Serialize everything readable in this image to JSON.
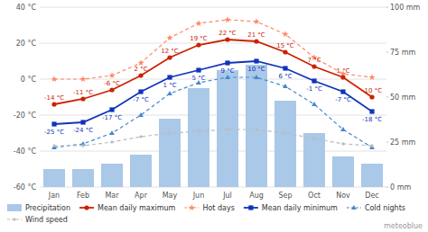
{
  "chart_data": {
    "type": "line",
    "categories": [
      "Jan",
      "Feb",
      "Mar",
      "Apr",
      "May",
      "Jun",
      "Jul",
      "Aug",
      "Sep",
      "Oct",
      "Nov",
      "Dec"
    ],
    "series": [
      {
        "name": "Precipitation",
        "type": "bar",
        "axis": "y2",
        "color": "#aac8e8",
        "values": [
          10,
          10,
          13,
          18,
          38,
          55,
          65,
          68,
          48,
          30,
          17,
          13
        ]
      },
      {
        "name": "Mean daily maximum",
        "type": "line",
        "color": "#cc2200",
        "marker": "circle",
        "line_style": "solid",
        "values": [
          -14,
          -11,
          -6,
          2,
          12,
          19,
          22,
          21,
          15,
          7,
          1,
          -10
        ],
        "data_labels": true,
        "value_labels": [
          "-14 °C",
          "-11 °C",
          "-6 °C",
          "2 °C",
          "12 °C",
          "19 °C",
          "22 °C",
          "21 °C",
          "15 °C",
          "7 °C",
          "1 °C",
          "-10 °C"
        ]
      },
      {
        "name": "Hot days",
        "type": "line",
        "color": "#ff8866",
        "marker": "star",
        "line_style": "dashed",
        "values": [
          0,
          0,
          2,
          9,
          23,
          31,
          33,
          32,
          25,
          12,
          3,
          1
        ]
      },
      {
        "name": "Mean daily minimum",
        "type": "line",
        "color": "#1133bb",
        "marker": "square",
        "line_style": "solid",
        "values": [
          -25,
          -24,
          -17,
          -7,
          1,
          5,
          9,
          10,
          6,
          -1,
          -7,
          -18
        ],
        "data_labels": true,
        "value_labels": [
          "-25 °C",
          "-24 °C",
          "-17 °C",
          "-7 °C",
          "1 °C",
          "5 °C",
          "9 °C",
          "10 °C",
          "6 °C",
          "-1 °C",
          "-7 °C",
          "-18 °C"
        ]
      },
      {
        "name": "Cold nights",
        "type": "line",
        "color": "#4488cc",
        "marker": "triangle",
        "line_style": "dashed",
        "values": [
          -38,
          -36,
          -30,
          -20,
          -8,
          -2,
          1,
          1,
          -4,
          -14,
          -28,
          -38
        ]
      },
      {
        "name": "Wind speed",
        "type": "line",
        "color": "#bbbbbb",
        "marker": "diamond",
        "line_style": "dashed",
        "values": [
          -37,
          -37,
          -35,
          -32,
          -30,
          -29,
          -28,
          -28,
          -30,
          -33,
          -36,
          -37
        ]
      }
    ],
    "ylim": [
      -60,
      40
    ],
    "yticks": [
      {
        "value": -60,
        "label": "-60 °C"
      },
      {
        "value": -40,
        "label": "-40 °C"
      },
      {
        "value": -20,
        "label": "-20 °C"
      },
      {
        "value": 0,
        "label": "0 °C"
      },
      {
        "value": 20,
        "label": "20 °C"
      },
      {
        "value": 40,
        "label": "40 °C"
      }
    ],
    "y2lim": [
      0,
      100
    ],
    "y2ticks": [
      {
        "value": 0,
        "label": "0 mm"
      },
      {
        "value": 25,
        "label": "25 mm"
      },
      {
        "value": 50,
        "label": "50 mm"
      },
      {
        "value": 75,
        "label": "75 mm"
      },
      {
        "value": 100,
        "label": "100 mm"
      }
    ],
    "grid": true,
    "legend": "bottom",
    "annotations": [
      "meteoblue"
    ]
  }
}
